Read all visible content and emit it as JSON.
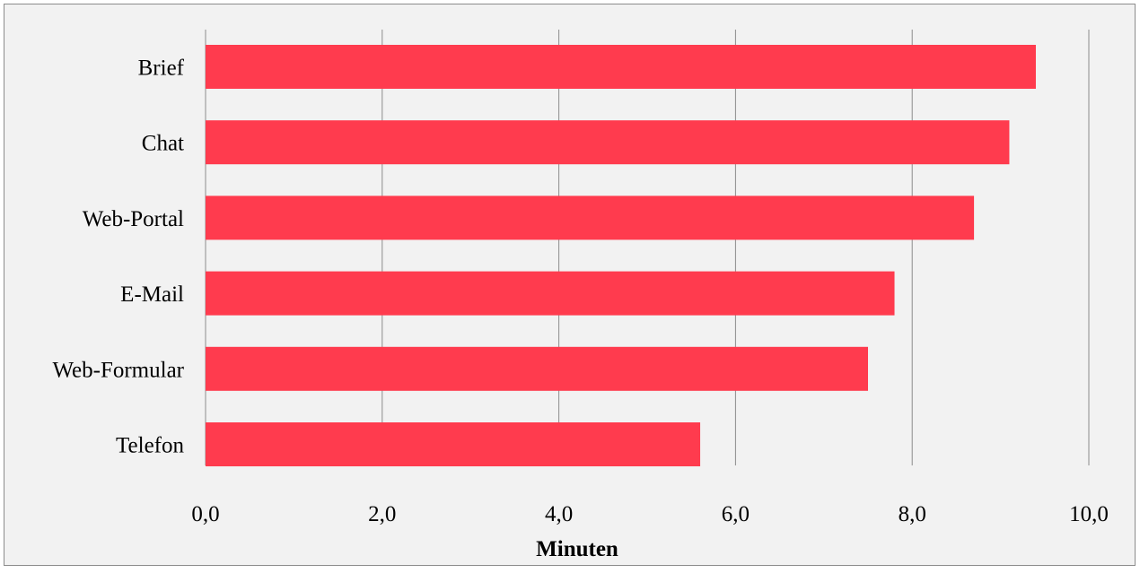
{
  "chart_data": {
    "type": "bar",
    "orientation": "horizontal",
    "categories": [
      "Brief",
      "Chat",
      "Web-Portal",
      "E-Mail",
      "Web-Formular",
      "Telefon"
    ],
    "values": [
      9.4,
      9.1,
      8.7,
      7.8,
      7.5,
      5.6
    ],
    "xlabel": "Minuten",
    "ylabel": "",
    "xlim": [
      0,
      10
    ],
    "xticks": [
      "0,0",
      "2,0",
      "4,0",
      "6,0",
      "8,0",
      "10,0"
    ],
    "grid": "vertical",
    "legend": "none",
    "colors": {
      "bar": "#ff3b4e",
      "background": "#f2f2f2",
      "gridline": "#8c8c8c"
    }
  }
}
